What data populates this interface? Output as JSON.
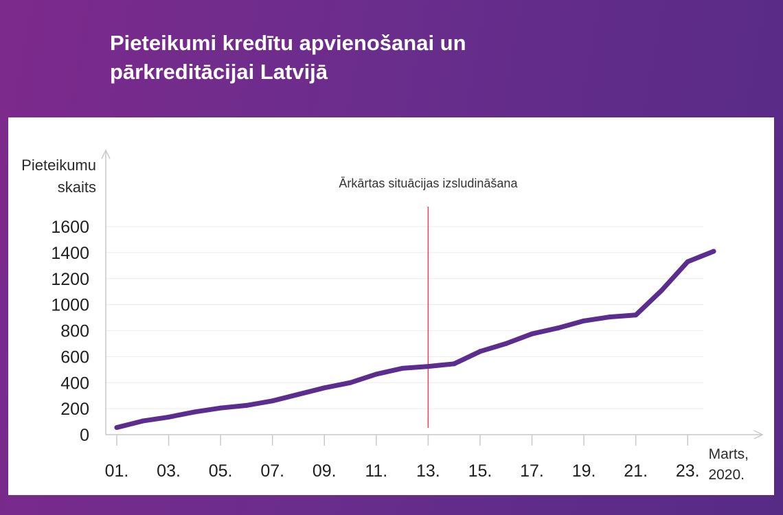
{
  "title": {
    "line1": "Pieteikumi kredītu apvienošanai un",
    "line2": "pārkreditācijai Latvijā"
  },
  "colors": {
    "background_start": "#7d2a8c",
    "background_end": "#562b86",
    "line": "#5b2d8e",
    "event_marker": "#e8414b"
  },
  "chart_data": {
    "type": "line",
    "title": "Pieteikumi kredītu apvienošanai un pārkreditācijai Latvijā",
    "ylabel_line1": "Pieteikumu",
    "ylabel_line2": "skaits",
    "xlabel_line1": "Marts,",
    "xlabel_line2": "2020.",
    "ylim": [
      0,
      1600
    ],
    "yticks": [
      "0",
      "200",
      "400",
      "600",
      "800",
      "1000",
      "1200",
      "1400",
      "1600"
    ],
    "ytick_values": [
      0,
      200,
      400,
      600,
      800,
      1000,
      1200,
      1400,
      1600
    ],
    "xticks": [
      "01.",
      "03.",
      "05.",
      "07.",
      "09.",
      "11.",
      "13.",
      "15.",
      "17.",
      "19.",
      "21.",
      "23."
    ],
    "xtick_days": [
      1,
      3,
      5,
      7,
      9,
      11,
      13,
      15,
      17,
      19,
      21,
      23
    ],
    "xlim": [
      1,
      24
    ],
    "grid": true,
    "series": [
      {
        "x": [
          1,
          2,
          3,
          4,
          5,
          6,
          7,
          8,
          9,
          10,
          11,
          12,
          13,
          14,
          15,
          16,
          17,
          18,
          19,
          20,
          21,
          22,
          23,
          24
        ],
        "y": [
          55,
          105,
          135,
          175,
          205,
          225,
          260,
          310,
          360,
          400,
          465,
          510,
          525,
          545,
          640,
          700,
          775,
          820,
          875,
          905,
          920,
          1110,
          1330,
          1410
        ]
      }
    ],
    "annotation": {
      "label": "Ārkārtas situācijas izsludināšana",
      "x": 13
    }
  }
}
